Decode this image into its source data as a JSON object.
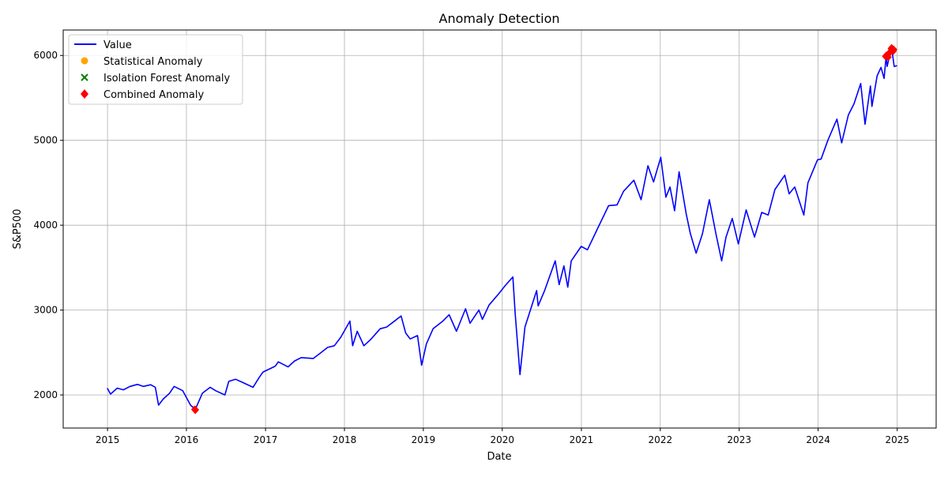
{
  "chart_data": {
    "type": "line",
    "title": "Anomaly Detection",
    "xlabel": "Date",
    "ylabel": "S&P500",
    "xlim": [
      "2014-06-10",
      "2025-06-30"
    ],
    "ylim": [
      1610,
      6300
    ],
    "grid": true,
    "legend_position": "top-left",
    "x_ticks": [
      "2015",
      "2016",
      "2017",
      "2018",
      "2019",
      "2020",
      "2021",
      "2022",
      "2023",
      "2024",
      "2025"
    ],
    "y_ticks": [
      2000,
      3000,
      4000,
      5000,
      6000
    ],
    "series": [
      {
        "name": "Value",
        "color": "#0000ff",
        "points": [
          [
            "2014-12-31",
            2080
          ],
          [
            "2015-01-15",
            2010
          ],
          [
            "2015-02-15",
            2080
          ],
          [
            "2015-03-15",
            2060
          ],
          [
            "2015-04-15",
            2100
          ],
          [
            "2015-05-20",
            2125
          ],
          [
            "2015-06-15",
            2100
          ],
          [
            "2015-07-20",
            2120
          ],
          [
            "2015-08-10",
            2090
          ],
          [
            "2015-08-25",
            1880
          ],
          [
            "2015-09-15",
            1950
          ],
          [
            "2015-10-15",
            2020
          ],
          [
            "2015-11-05",
            2100
          ],
          [
            "2015-12-15",
            2050
          ],
          [
            "2016-01-20",
            1880
          ],
          [
            "2016-02-11",
            1830
          ],
          [
            "2016-03-15",
            2020
          ],
          [
            "2016-04-20",
            2090
          ],
          [
            "2016-05-15",
            2050
          ],
          [
            "2016-06-27",
            2000
          ],
          [
            "2016-07-15",
            2160
          ],
          [
            "2016-08-15",
            2185
          ],
          [
            "2016-09-15",
            2150
          ],
          [
            "2016-11-04",
            2090
          ],
          [
            "2016-12-01",
            2200
          ],
          [
            "2016-12-20",
            2270
          ],
          [
            "2017-02-15",
            2340
          ],
          [
            "2017-03-01",
            2390
          ],
          [
            "2017-04-15",
            2330
          ],
          [
            "2017-05-15",
            2400
          ],
          [
            "2017-06-15",
            2440
          ],
          [
            "2017-08-10",
            2430
          ],
          [
            "2017-09-15",
            2500
          ],
          [
            "2017-10-15",
            2560
          ],
          [
            "2017-11-15",
            2580
          ],
          [
            "2017-12-15",
            2680
          ],
          [
            "2018-01-26",
            2870
          ],
          [
            "2018-02-08",
            2580
          ],
          [
            "2018-03-01",
            2750
          ],
          [
            "2018-04-01",
            2580
          ],
          [
            "2018-05-01",
            2650
          ],
          [
            "2018-06-15",
            2780
          ],
          [
            "2018-07-15",
            2800
          ],
          [
            "2018-08-15",
            2860
          ],
          [
            "2018-09-20",
            2930
          ],
          [
            "2018-10-11",
            2730
          ],
          [
            "2018-11-01",
            2660
          ],
          [
            "2018-12-05",
            2700
          ],
          [
            "2018-12-24",
            2350
          ],
          [
            "2019-01-15",
            2600
          ],
          [
            "2019-02-15",
            2780
          ],
          [
            "2019-04-01",
            2870
          ],
          [
            "2019-04-30",
            2945
          ],
          [
            "2019-06-03",
            2750
          ],
          [
            "2019-07-15",
            3015
          ],
          [
            "2019-08-05",
            2845
          ],
          [
            "2019-09-15",
            3000
          ],
          [
            "2019-10-01",
            2890
          ],
          [
            "2019-11-01",
            3060
          ],
          [
            "2019-12-15",
            3190
          ],
          [
            "2020-01-15",
            3290
          ],
          [
            "2020-02-19",
            3390
          ],
          [
            "2020-03-01",
            2950
          ],
          [
            "2020-03-23",
            2240
          ],
          [
            "2020-04-15",
            2800
          ],
          [
            "2020-06-08",
            3230
          ],
          [
            "2020-06-15",
            3050
          ],
          [
            "2020-07-15",
            3230
          ],
          [
            "2020-09-02",
            3580
          ],
          [
            "2020-09-20",
            3300
          ],
          [
            "2020-10-12",
            3520
          ],
          [
            "2020-10-30",
            3270
          ],
          [
            "2020-11-15",
            3580
          ],
          [
            "2020-12-31",
            3750
          ],
          [
            "2021-01-29",
            3710
          ],
          [
            "2021-03-15",
            3950
          ],
          [
            "2021-05-07",
            4230
          ],
          [
            "2021-06-15",
            4240
          ],
          [
            "2021-07-15",
            4400
          ],
          [
            "2021-09-01",
            4530
          ],
          [
            "2021-10-04",
            4300
          ],
          [
            "2021-11-05",
            4700
          ],
          [
            "2021-12-01",
            4510
          ],
          [
            "2022-01-03",
            4800
          ],
          [
            "2022-01-27",
            4330
          ],
          [
            "2022-02-15",
            4450
          ],
          [
            "2022-03-08",
            4170
          ],
          [
            "2022-03-29",
            4630
          ],
          [
            "2022-05-01",
            4130
          ],
          [
            "2022-05-20",
            3900
          ],
          [
            "2022-06-16",
            3670
          ],
          [
            "2022-07-15",
            3900
          ],
          [
            "2022-08-16",
            4300
          ],
          [
            "2022-09-15",
            3900
          ],
          [
            "2022-10-12",
            3580
          ],
          [
            "2022-11-01",
            3860
          ],
          [
            "2022-11-30",
            4080
          ],
          [
            "2022-12-28",
            3780
          ],
          [
            "2023-02-02",
            4180
          ],
          [
            "2023-03-13",
            3860
          ],
          [
            "2023-04-15",
            4150
          ],
          [
            "2023-05-15",
            4120
          ],
          [
            "2023-06-15",
            4420
          ],
          [
            "2023-07-31",
            4590
          ],
          [
            "2023-08-20",
            4370
          ],
          [
            "2023-09-15",
            4450
          ],
          [
            "2023-10-27",
            4120
          ],
          [
            "2023-11-15",
            4500
          ],
          [
            "2023-12-29",
            4770
          ],
          [
            "2024-01-15",
            4780
          ],
          [
            "2024-02-15",
            5000
          ],
          [
            "2024-03-28",
            5250
          ],
          [
            "2024-04-19",
            4970
          ],
          [
            "2024-05-20",
            5300
          ],
          [
            "2024-06-15",
            5430
          ],
          [
            "2024-07-16",
            5670
          ],
          [
            "2024-08-05",
            5190
          ],
          [
            "2024-08-30",
            5640
          ],
          [
            "2024-09-06",
            5400
          ],
          [
            "2024-09-30",
            5760
          ],
          [
            "2024-10-18",
            5860
          ],
          [
            "2024-11-01",
            5730
          ],
          [
            "2024-11-11",
            6000
          ],
          [
            "2024-11-15",
            5870
          ],
          [
            "2024-12-06",
            6090
          ],
          [
            "2024-12-18",
            5870
          ],
          [
            "2024-12-31",
            5880
          ]
        ]
      },
      {
        "name": "Statistical Anomaly",
        "color": "#ffa500",
        "marker": "circle",
        "points": []
      },
      {
        "name": "Isolation Forest Anomaly",
        "color": "#008000",
        "marker": "x",
        "points": []
      },
      {
        "name": "Combined Anomaly",
        "color": "#ff0000",
        "marker": "diamond",
        "points": [
          [
            "2016-02-08",
            1830
          ],
          [
            "2016-02-11",
            1820
          ],
          [
            "2016-02-12",
            1825
          ],
          [
            "2024-11-08",
            5990
          ],
          [
            "2024-11-11",
            6000
          ],
          [
            "2024-11-20",
            5980
          ],
          [
            "2024-11-25",
            6030
          ],
          [
            "2024-11-29",
            6040
          ],
          [
            "2024-12-02",
            6050
          ],
          [
            "2024-12-04",
            6080
          ],
          [
            "2024-12-06",
            6090
          ],
          [
            "2024-12-09",
            6060
          ],
          [
            "2024-12-11",
            6070
          ],
          [
            "2024-12-13",
            6050
          ],
          [
            "2024-12-16",
            6070
          ]
        ]
      }
    ]
  }
}
